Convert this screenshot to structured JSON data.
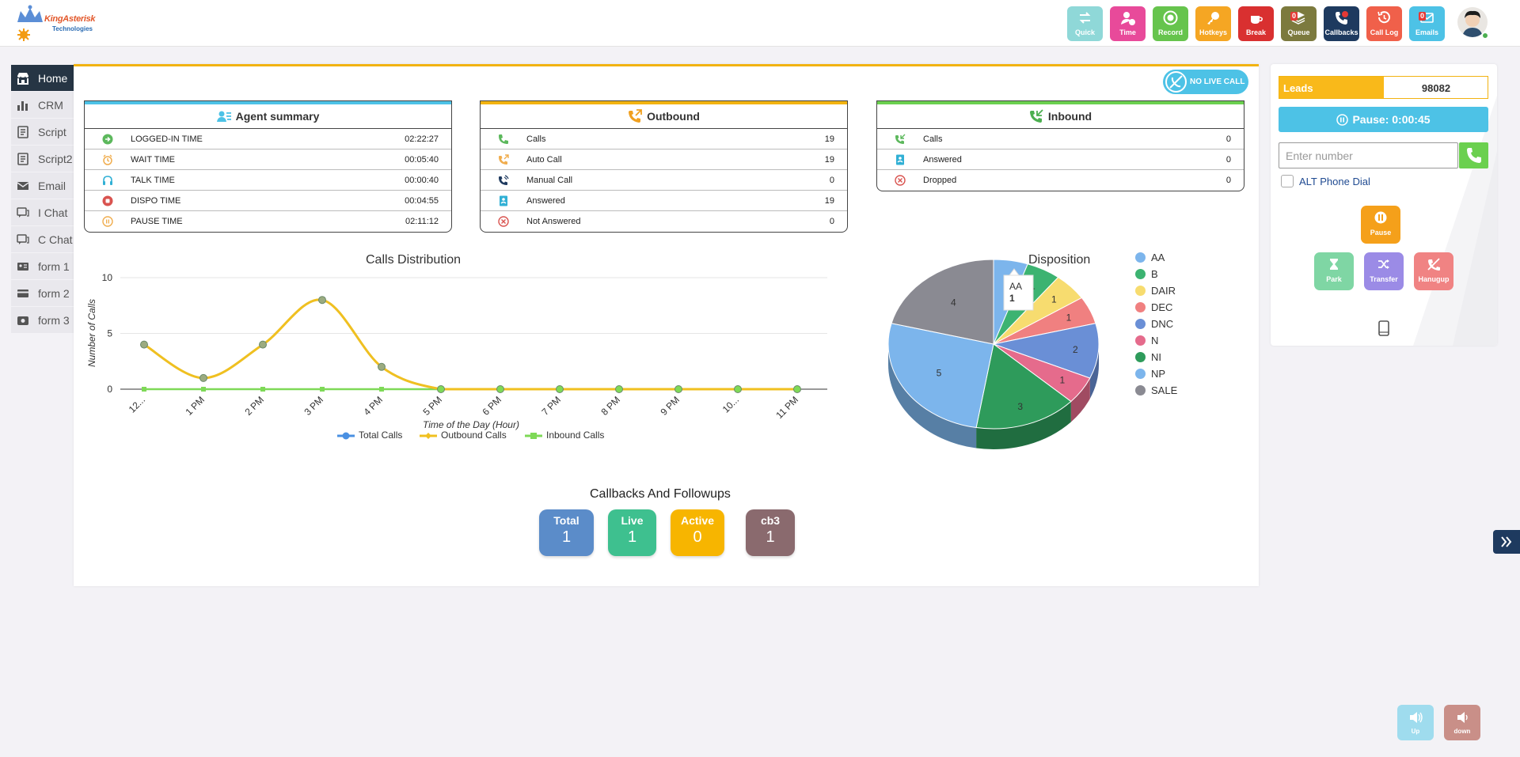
{
  "brand": {
    "name": "KingAsterisk",
    "sub": "Technologies"
  },
  "topbar": [
    {
      "label": "Quick",
      "color": "#8fd8d8",
      "badge": ""
    },
    {
      "label": "Time",
      "color": "#e84a9a",
      "badge": ""
    },
    {
      "label": "Record",
      "color": "#66c44d",
      "badge": ""
    },
    {
      "label": "Hotkeys",
      "color": "#f5a623",
      "badge": ""
    },
    {
      "label": "Break",
      "color": "#d93030",
      "badge": ""
    },
    {
      "label": "Queue",
      "color": "#7c7a3e",
      "badge": "0"
    },
    {
      "label": "Callbacks",
      "color": "#1e3a5f",
      "badge": ""
    },
    {
      "label": "Call Log",
      "color": "#f0604a",
      "badge": ""
    },
    {
      "label": "Emails",
      "color": "#4dc2e6",
      "badge": "0"
    }
  ],
  "sidebar": [
    {
      "label": "Home",
      "icon": "store-icon"
    },
    {
      "label": "CRM",
      "icon": "bar-chart-icon"
    },
    {
      "label": "Script",
      "icon": "document-icon"
    },
    {
      "label": "Script2",
      "icon": "document-icon"
    },
    {
      "label": "Email",
      "icon": "envelope-icon"
    },
    {
      "label": "I Chat",
      "icon": "chat-icon"
    },
    {
      "label": "C Chat",
      "icon": "chat-icon"
    },
    {
      "label": "form 1",
      "icon": "id-card-icon"
    },
    {
      "label": "form 2",
      "icon": "credit-card-icon"
    },
    {
      "label": "form 3",
      "icon": "camera-icon"
    }
  ],
  "no_live_call": "NO LIVE CALL",
  "agent_summary": {
    "title": "Agent summary",
    "rows": [
      {
        "label": "LOGGED-IN TIME",
        "value": "02:22:27",
        "icon": "login-icon",
        "color": "#5cb85c"
      },
      {
        "label": "WAIT TIME",
        "value": "00:05:40",
        "icon": "alarm-icon",
        "color": "#f0ad4e"
      },
      {
        "label": "TALK TIME",
        "value": "00:00:40",
        "icon": "headset-icon",
        "color": "#31b0d5"
      },
      {
        "label": "DISPO TIME",
        "value": "00:04:55",
        "icon": "stop-icon",
        "color": "#d9534f"
      },
      {
        "label": "PAUSE TIME",
        "value": "02:11:12",
        "icon": "pause-icon",
        "color": "#f0ad4e"
      }
    ]
  },
  "outbound": {
    "title": "Outbound",
    "rows": [
      {
        "label": "Calls",
        "value": "19",
        "icon": "phone-icon",
        "color": "#5cb85c"
      },
      {
        "label": "Auto Call",
        "value": "19",
        "icon": "phone-outgoing-icon",
        "color": "#f0ad4e"
      },
      {
        "label": "Manual Call",
        "value": "0",
        "icon": "phone-volume-icon",
        "color": "#1e3a5f"
      },
      {
        "label": "Answered",
        "value": "19",
        "icon": "contact-icon",
        "color": "#31b0d5"
      },
      {
        "label": "Not Answered",
        "value": "0",
        "icon": "x-circle-icon",
        "color": "#d9534f"
      }
    ]
  },
  "inbound": {
    "title": "Inbound",
    "rows": [
      {
        "label": "Calls",
        "value": "0",
        "icon": "phone-incoming-icon",
        "color": "#5cb85c"
      },
      {
        "label": "Answered",
        "value": "0",
        "icon": "contact-icon",
        "color": "#31b0d5"
      },
      {
        "label": "Dropped",
        "value": "0",
        "icon": "x-circle-icon",
        "color": "#d9534f"
      }
    ]
  },
  "chart_data": [
    {
      "type": "line",
      "title": "Calls Distribution",
      "xlabel": "Time of the Day (Hour)",
      "ylabel": "Number of Calls",
      "ylim": [
        0,
        10
      ],
      "yticks": [
        "0",
        "5",
        "10"
      ],
      "categories": [
        "12...",
        "1 PM",
        "2 PM",
        "3 PM",
        "4 PM",
        "5 PM",
        "6 PM",
        "7 PM",
        "8 PM",
        "9 PM",
        "10...",
        "11 PM"
      ],
      "series": [
        {
          "name": "Total Calls",
          "color": "#4a90e2",
          "values": [
            4,
            1,
            4,
            8,
            2,
            0,
            0,
            0,
            0,
            0,
            0,
            0
          ]
        },
        {
          "name": "Outbound Calls",
          "color": "#f0c020",
          "values": [
            4,
            1,
            4,
            8,
            2,
            0,
            0,
            0,
            0,
            0,
            0,
            0
          ]
        },
        {
          "name": "Inbound Calls",
          "color": "#7ed957",
          "values": [
            0,
            0,
            0,
            0,
            0,
            0,
            0,
            0,
            0,
            0,
            0,
            0
          ]
        }
      ]
    },
    {
      "type": "pie",
      "title": "Disposition",
      "categories": [
        "AA",
        "B",
        "DAIR",
        "DEC",
        "DNC",
        "N",
        "NI",
        "NP",
        "SALE"
      ],
      "values": [
        1,
        1,
        1,
        1,
        2,
        1,
        3,
        5,
        4
      ],
      "colors": [
        "#7cb5ec",
        "#3cb371",
        "#f7dc6f",
        "#f08080",
        "#6a8fd6",
        "#e56b8c",
        "#2e9b5b",
        "#7cb5ec",
        "#8a8a92"
      ],
      "tooltip": {
        "label": "AA",
        "value": "1"
      }
    }
  ],
  "callbacks": {
    "title": "Callbacks And Followups",
    "boxes": [
      {
        "label": "Total",
        "value": "1",
        "color": "#5b8cc9"
      },
      {
        "label": "Live",
        "value": "1",
        "color": "#3ec08f"
      },
      {
        "label": "Active",
        "value": "0",
        "color": "#f7b500"
      },
      {
        "label": "cb3",
        "value": "1",
        "color": "#8a6a6e"
      }
    ]
  },
  "right": {
    "leads_label": "Leads",
    "leads_value": "98082",
    "pause_label": "Pause:",
    "pause_time": "0:00:45",
    "number_placeholder": "Enter number",
    "alt_dial": "ALT Phone Dial",
    "pause_btn": "Pause",
    "park_btn": "Park",
    "transfer_btn": "Transfer",
    "hangup_btn": "Hanugup"
  },
  "volume": {
    "up": "Up",
    "down": "down"
  }
}
